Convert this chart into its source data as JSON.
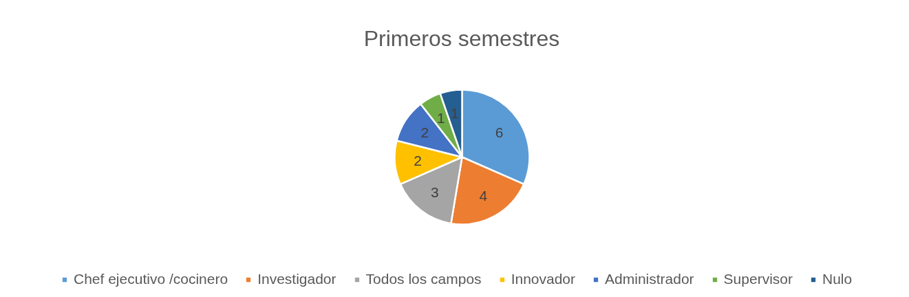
{
  "chart_data": {
    "type": "pie",
    "title": "Primeros semestres",
    "categories": [
      "Chef ejecutivo /cocinero",
      "Investigador",
      "Todos los campos",
      "Innovador",
      "Administrador",
      "Supervisor",
      "Nulo"
    ],
    "values": [
      6,
      4,
      3,
      2,
      2,
      1,
      1
    ],
    "colors": [
      "#5b9bd5",
      "#ed7d31",
      "#a5a5a5",
      "#ffc000",
      "#4472c4",
      "#70ad47",
      "#255e91"
    ],
    "data_labels": true,
    "legend": "bottom"
  }
}
